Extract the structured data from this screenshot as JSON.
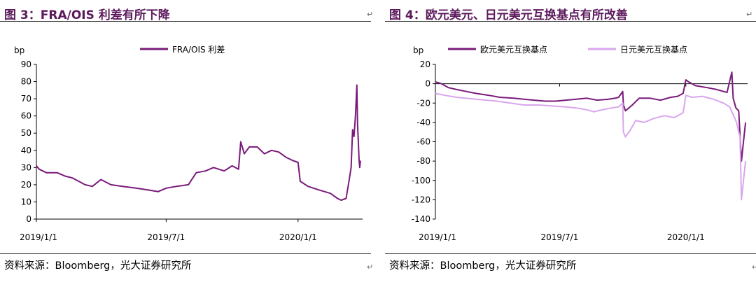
{
  "left": {
    "title": "图 3：FRA/OIS 利差有所下降",
    "source": "资料来源：Bloomberg，光大证券研究所",
    "chart_data": {
      "type": "line",
      "ylabel": "bp",
      "ylim": [
        0,
        90
      ],
      "yticks": [
        0,
        10,
        20,
        30,
        40,
        50,
        60,
        70,
        80,
        90
      ],
      "x_tick_labels": [
        "2019/1/1",
        "2019/7/1",
        "2020/1/1"
      ],
      "xlim": [
        "2019-01-01",
        "2020-03-31"
      ],
      "legend_position": "top",
      "series": [
        {
          "name": "FRA/OIS 利差",
          "color": "#7a1a7a",
          "points": [
            [
              "2019-01-01",
              31
            ],
            [
              "2019-01-05",
              29
            ],
            [
              "2019-01-15",
              27
            ],
            [
              "2019-01-30",
              27
            ],
            [
              "2019-02-10",
              25
            ],
            [
              "2019-02-20",
              24
            ],
            [
              "2019-03-01",
              22
            ],
            [
              "2019-03-10",
              20
            ],
            [
              "2019-03-20",
              19
            ],
            [
              "2019-04-01",
              23
            ],
            [
              "2019-04-15",
              20
            ],
            [
              "2019-05-01",
              19
            ],
            [
              "2019-05-20",
              18
            ],
            [
              "2019-06-05",
              17
            ],
            [
              "2019-06-20",
              16
            ],
            [
              "2019-07-01",
              18
            ],
            [
              "2019-07-15",
              19
            ],
            [
              "2019-08-01",
              20
            ],
            [
              "2019-08-12",
              27
            ],
            [
              "2019-08-25",
              28
            ],
            [
              "2019-09-05",
              30
            ],
            [
              "2019-09-20",
              28
            ],
            [
              "2019-10-01",
              31
            ],
            [
              "2019-10-10",
              29
            ],
            [
              "2019-10-13",
              45
            ],
            [
              "2019-10-18",
              38
            ],
            [
              "2019-10-25",
              42
            ],
            [
              "2019-11-05",
              42
            ],
            [
              "2019-11-15",
              38
            ],
            [
              "2019-11-25",
              40
            ],
            [
              "2019-12-05",
              39
            ],
            [
              "2019-12-15",
              36
            ],
            [
              "2019-12-25",
              34
            ],
            [
              "2020-01-01",
              33
            ],
            [
              "2020-01-04",
              22
            ],
            [
              "2020-01-15",
              19
            ],
            [
              "2020-01-30",
              17
            ],
            [
              "2020-02-15",
              15
            ],
            [
              "2020-02-25",
              12
            ],
            [
              "2020-03-01",
              11
            ],
            [
              "2020-03-08",
              12
            ],
            [
              "2020-03-12",
              22
            ],
            [
              "2020-03-15",
              30
            ],
            [
              "2020-03-17",
              52
            ],
            [
              "2020-03-19",
              48
            ],
            [
              "2020-03-21",
              60
            ],
            [
              "2020-03-23",
              78
            ],
            [
              "2020-03-24",
              55
            ],
            [
              "2020-03-25",
              45
            ],
            [
              "2020-03-26",
              35
            ],
            [
              "2020-03-27",
              30
            ],
            [
              "2020-03-28",
              34
            ]
          ]
        }
      ]
    }
  },
  "right": {
    "title": "图 4：欧元美元、日元美元互换基点有所改善",
    "source": "资料来源：Bloomberg，光大证券研究所",
    "chart_data": {
      "type": "line",
      "ylabel": "bp",
      "ylim": [
        -140,
        20
      ],
      "yticks": [
        20,
        0,
        -20,
        -40,
        -60,
        -80,
        -100,
        -120,
        -140
      ],
      "x_tick_labels": [
        "2019/1/1",
        "2019/7/1",
        "2020/1/1"
      ],
      "xlim": [
        "2019-01-01",
        "2020-03-31"
      ],
      "legend_position": "top",
      "series": [
        {
          "name": "欧元美元互换基点",
          "color": "#7a1a7a",
          "points": [
            [
              "2019-01-01",
              2
            ],
            [
              "2019-01-10",
              0
            ],
            [
              "2019-01-20",
              -4
            ],
            [
              "2019-02-01",
              -6
            ],
            [
              "2019-02-15",
              -8
            ],
            [
              "2019-03-01",
              -10
            ],
            [
              "2019-03-20",
              -12
            ],
            [
              "2019-04-05",
              -14
            ],
            [
              "2019-04-25",
              -15
            ],
            [
              "2019-05-10",
              -16
            ],
            [
              "2019-05-25",
              -17
            ],
            [
              "2019-06-10",
              -18
            ],
            [
              "2019-06-25",
              -18
            ],
            [
              "2019-07-10",
              -17
            ],
            [
              "2019-07-25",
              -16
            ],
            [
              "2019-08-10",
              -15
            ],
            [
              "2019-08-25",
              -17
            ],
            [
              "2019-09-10",
              -16
            ],
            [
              "2019-09-20",
              -15
            ],
            [
              "2019-09-25",
              -14
            ],
            [
              "2019-10-01",
              -8
            ],
            [
              "2019-10-02",
              -22
            ],
            [
              "2019-10-05",
              -28
            ],
            [
              "2019-10-15",
              -22
            ],
            [
              "2019-10-25",
              -15
            ],
            [
              "2019-11-10",
              -15
            ],
            [
              "2019-11-25",
              -17
            ],
            [
              "2019-12-10",
              -14
            ],
            [
              "2019-12-20",
              -13
            ],
            [
              "2019-12-28",
              -10
            ],
            [
              "2020-01-01",
              4
            ],
            [
              "2020-01-05",
              2
            ],
            [
              "2020-01-15",
              -2
            ],
            [
              "2020-02-01",
              -4
            ],
            [
              "2020-02-15",
              -6
            ],
            [
              "2020-03-01",
              -9
            ],
            [
              "2020-03-08",
              12
            ],
            [
              "2020-03-10",
              -15
            ],
            [
              "2020-03-14",
              -25
            ],
            [
              "2020-03-18",
              -28
            ],
            [
              "2020-03-22",
              -80
            ],
            [
              "2020-03-25",
              -60
            ],
            [
              "2020-03-28",
              -40
            ]
          ]
        },
        {
          "name": "日元美元互换基点",
          "color": "#d9a6ee",
          "points": [
            [
              "2019-01-01",
              -10
            ],
            [
              "2019-01-15",
              -12
            ],
            [
              "2019-02-01",
              -14
            ],
            [
              "2019-03-01",
              -16
            ],
            [
              "2019-04-01",
              -18
            ],
            [
              "2019-04-20",
              -20
            ],
            [
              "2019-05-10",
              -22
            ],
            [
              "2019-06-01",
              -22
            ],
            [
              "2019-06-20",
              -23
            ],
            [
              "2019-07-10",
              -24
            ],
            [
              "2019-07-25",
              -25
            ],
            [
              "2019-08-10",
              -27
            ],
            [
              "2019-08-20",
              -29
            ],
            [
              "2019-09-01",
              -27
            ],
            [
              "2019-09-15",
              -25
            ],
            [
              "2019-09-25",
              -24
            ],
            [
              "2019-10-01",
              -20
            ],
            [
              "2019-10-02",
              -50
            ],
            [
              "2019-10-05",
              -55
            ],
            [
              "2019-10-12",
              -48
            ],
            [
              "2019-10-20",
              -38
            ],
            [
              "2019-11-01",
              -40
            ],
            [
              "2019-11-15",
              -36
            ],
            [
              "2019-12-01",
              -33
            ],
            [
              "2019-12-15",
              -35
            ],
            [
              "2019-12-28",
              -30
            ],
            [
              "2020-01-01",
              -12
            ],
            [
              "2020-01-10",
              -14
            ],
            [
              "2020-01-25",
              -13
            ],
            [
              "2020-02-10",
              -16
            ],
            [
              "2020-02-25",
              -20
            ],
            [
              "2020-03-05",
              -24
            ],
            [
              "2020-03-10",
              -32
            ],
            [
              "2020-03-15",
              -40
            ],
            [
              "2020-03-18",
              -50
            ],
            [
              "2020-03-20",
              -55
            ],
            [
              "2020-03-22",
              -120
            ],
            [
              "2020-03-25",
              -100
            ],
            [
              "2020-03-28",
              -80
            ]
          ]
        }
      ]
    }
  }
}
